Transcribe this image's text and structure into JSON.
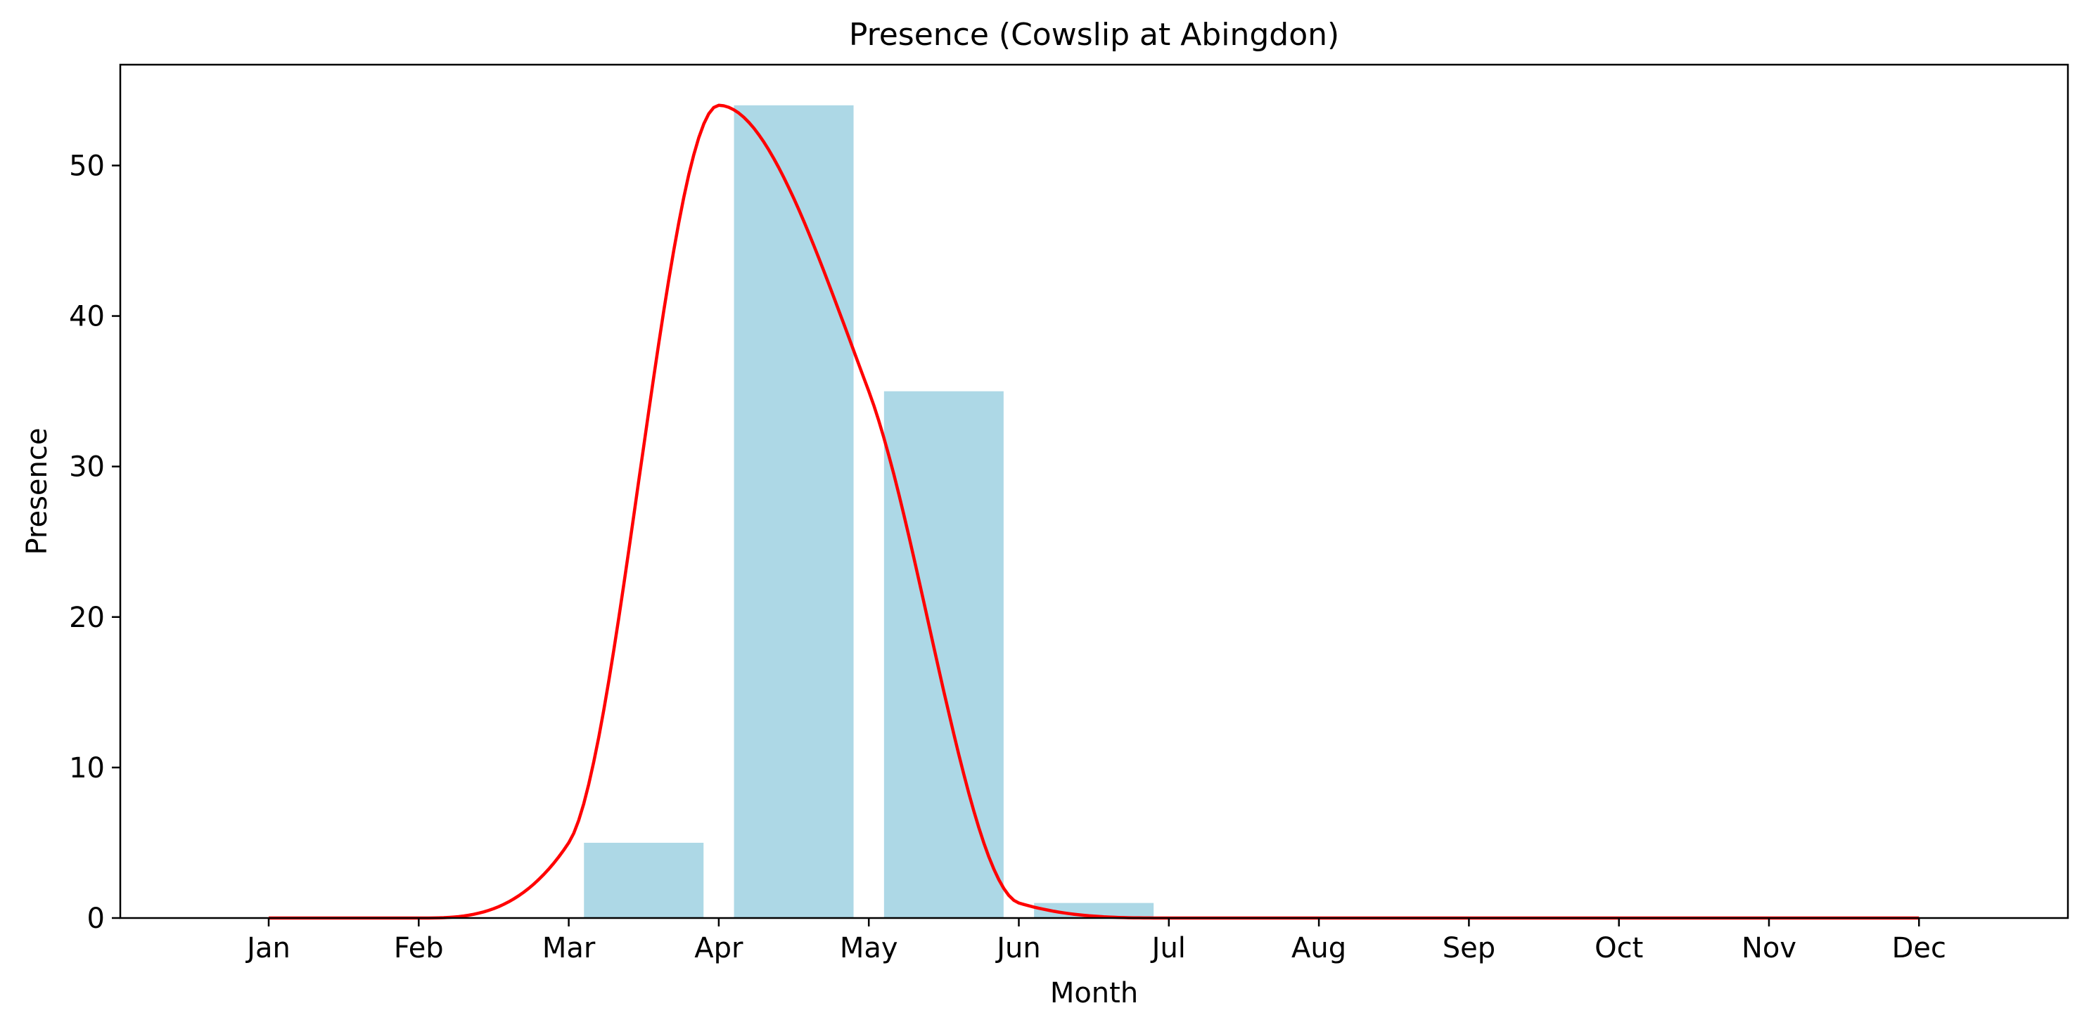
{
  "chart_data": {
    "type": "bar",
    "title": "Presence (Cowslip at Abingdon)",
    "xlabel": "Month",
    "ylabel": "Presence",
    "categories": [
      "Jan",
      "Feb",
      "Mar",
      "Apr",
      "May",
      "Jun",
      "Jul",
      "Aug",
      "Sep",
      "Oct",
      "Nov",
      "Dec"
    ],
    "values": [
      0,
      0,
      5,
      54,
      35,
      1,
      0,
      0,
      0,
      0,
      0,
      0
    ],
    "yticks": [
      0,
      10,
      20,
      30,
      40,
      50
    ],
    "ylim": [
      0,
      56.7
    ],
    "bar_offset": 0.5,
    "smoothed_curve": true,
    "grid": false,
    "colors": {
      "bar": "#add8e6",
      "line": "#ff0000",
      "axes": "#000000"
    }
  }
}
